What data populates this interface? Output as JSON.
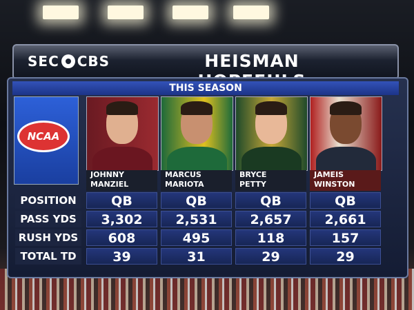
{
  "header": {
    "logo": [
      "SEC",
      "CBS"
    ],
    "title": "HEISMAN HOPEFULS"
  },
  "table": {
    "subtitle": "THIS SEASON",
    "badge": "NCAA",
    "players": [
      {
        "first": "JOHNNY",
        "last": "MANZIEL"
      },
      {
        "first": "MARCUS",
        "last": "MARIOTA"
      },
      {
        "first": "BRYCE",
        "last": "PETTY"
      },
      {
        "first": "JAMEIS",
        "last": "WINSTON"
      }
    ],
    "rows": [
      {
        "label": "POSITION",
        "values": [
          "QB",
          "QB",
          "QB",
          "QB"
        ]
      },
      {
        "label": "PASS YDS",
        "values": [
          "3,302",
          "2,531",
          "2,657",
          "2,661"
        ]
      },
      {
        "label": "RUSH YDS",
        "values": [
          "608",
          "495",
          "118",
          "157"
        ]
      },
      {
        "label": "TOTAL TD",
        "values": [
          "39",
          "31",
          "29",
          "29"
        ]
      }
    ]
  }
}
